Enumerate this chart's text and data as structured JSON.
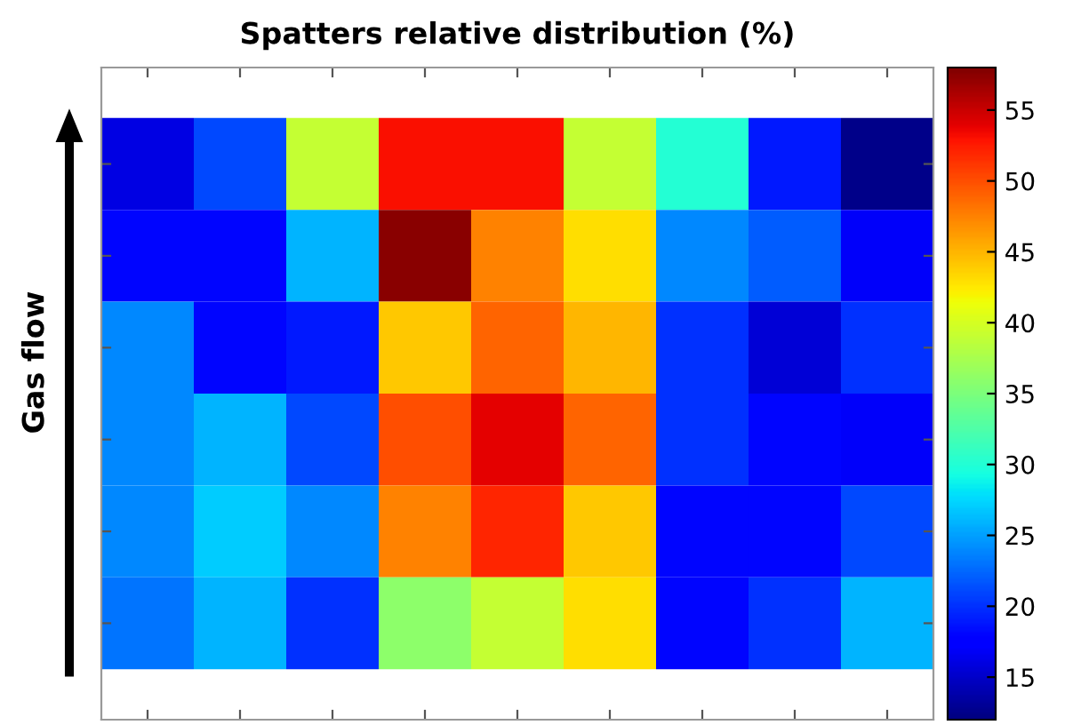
{
  "chart_data": {
    "type": "heatmap",
    "title": "Spatters relative distribution (%)",
    "ylabel": "Gas flow",
    "categories": [
      null,
      null,
      null,
      null,
      null,
      null,
      null,
      null,
      null
    ],
    "y_categories": [
      null,
      null,
      null,
      null,
      null,
      null
    ],
    "cells": [
      [
        16,
        21,
        39,
        53,
        53,
        39,
        30,
        19,
        12.5
      ],
      [
        18,
        18,
        26,
        57.5,
        47.5,
        43,
        24,
        22,
        17
      ],
      [
        24,
        18,
        19,
        44,
        49,
        45,
        20,
        15.5,
        20
      ],
      [
        24,
        26,
        21,
        50,
        54,
        49,
        20,
        18,
        17
      ],
      [
        24,
        27,
        24,
        47.5,
        52,
        44,
        18,
        18,
        21
      ],
      [
        23,
        26,
        20,
        36,
        39,
        43,
        18,
        20,
        26
      ]
    ],
    "clim": [
      12,
      58
    ],
    "cticks": [
      15,
      20,
      25,
      30,
      35,
      40,
      45,
      50,
      55
    ]
  }
}
